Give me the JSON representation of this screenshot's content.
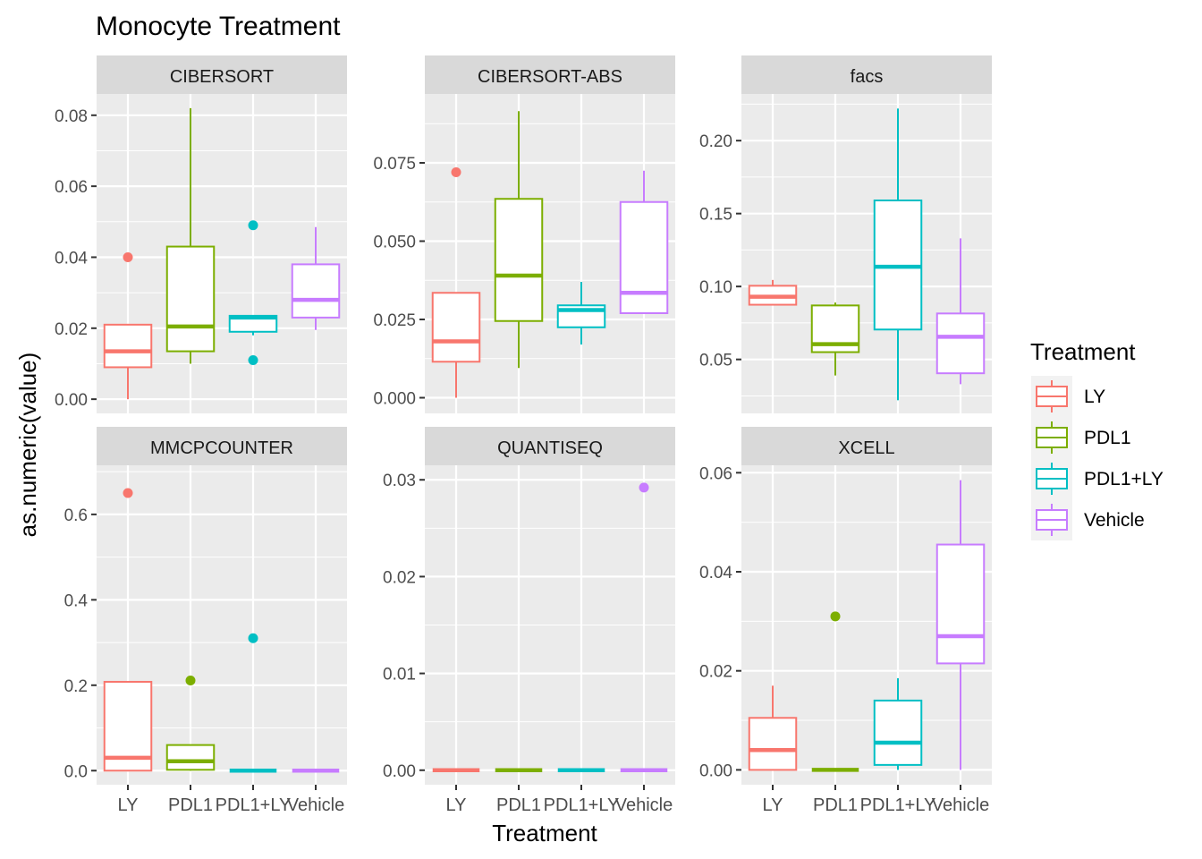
{
  "title": "Monocyte Treatment",
  "chart_data": {
    "type": "boxplot",
    "title": "Monocyte Treatment",
    "xlabel": "Treatment",
    "ylabel": "as.numeric(value)",
    "categories": [
      "LY",
      "PDL1",
      "PDL1+LY",
      "Vehicle"
    ],
    "legend": {
      "title": "Treatment",
      "placement": "right",
      "entries": [
        {
          "name": "LY",
          "color": "#F8766D"
        },
        {
          "name": "PDL1",
          "color": "#7CAE00"
        },
        {
          "name": "PDL1+LY",
          "color": "#00BFC4"
        },
        {
          "name": "Vehicle",
          "color": "#C77CFF"
        }
      ]
    },
    "grid": true,
    "panels": [
      {
        "name": "CIBERSORT",
        "ylim": [
          -0.004,
          0.086
        ],
        "yticks": [
          0.0,
          0.02,
          0.04,
          0.06,
          0.08
        ],
        "ytick_labels": [
          "0.00",
          "0.02",
          "0.04",
          "0.06",
          "0.08"
        ],
        "boxes": [
          {
            "category": "LY",
            "min": 0.0,
            "q1": 0.009,
            "median": 0.0135,
            "q3": 0.021,
            "max": 0.021,
            "outliers": [
              0.04
            ]
          },
          {
            "category": "PDL1",
            "min": 0.01,
            "q1": 0.0135,
            "median": 0.0205,
            "q3": 0.043,
            "max": 0.082,
            "outliers": []
          },
          {
            "category": "PDL1+LY",
            "min": 0.018,
            "q1": 0.019,
            "median": 0.023,
            "q3": 0.0235,
            "max": 0.0235,
            "outliers": [
              0.049,
              0.011
            ]
          },
          {
            "category": "Vehicle",
            "min": 0.0195,
            "q1": 0.023,
            "median": 0.028,
            "q3": 0.038,
            "max": 0.0485,
            "outliers": []
          }
        ]
      },
      {
        "name": "CIBERSORT-ABS",
        "ylim": [
          -0.005,
          0.097
        ],
        "yticks": [
          0.0,
          0.025,
          0.05,
          0.075
        ],
        "ytick_labels": [
          "0.000",
          "0.025",
          "0.050",
          "0.075"
        ],
        "boxes": [
          {
            "category": "LY",
            "min": 0.0,
            "q1": 0.0115,
            "median": 0.018,
            "q3": 0.0335,
            "max": 0.0335,
            "outliers": [
              0.072
            ]
          },
          {
            "category": "PDL1",
            "min": 0.0095,
            "q1": 0.0245,
            "median": 0.039,
            "q3": 0.0635,
            "max": 0.0915,
            "outliers": []
          },
          {
            "category": "PDL1+LY",
            "min": 0.017,
            "q1": 0.0225,
            "median": 0.028,
            "q3": 0.0295,
            "max": 0.037,
            "outliers": []
          },
          {
            "category": "Vehicle",
            "min": 0.027,
            "q1": 0.027,
            "median": 0.0335,
            "q3": 0.0625,
            "max": 0.0725,
            "outliers": []
          }
        ]
      },
      {
        "name": "facs",
        "ylim": [
          0.013,
          0.232
        ],
        "yticks": [
          0.05,
          0.1,
          0.15,
          0.2
        ],
        "ytick_labels": [
          "0.05",
          "0.10",
          "0.15",
          "0.20"
        ],
        "boxes": [
          {
            "category": "LY",
            "min": 0.087,
            "q1": 0.0875,
            "median": 0.093,
            "q3": 0.1005,
            "max": 0.1045,
            "outliers": []
          },
          {
            "category": "PDL1",
            "min": 0.039,
            "q1": 0.055,
            "median": 0.0605,
            "q3": 0.087,
            "max": 0.089,
            "outliers": []
          },
          {
            "category": "PDL1+LY",
            "min": 0.022,
            "q1": 0.0705,
            "median": 0.1135,
            "q3": 0.159,
            "max": 0.222,
            "outliers": []
          },
          {
            "category": "Vehicle",
            "min": 0.033,
            "q1": 0.0405,
            "median": 0.0655,
            "q3": 0.0815,
            "max": 0.133,
            "outliers": []
          }
        ]
      },
      {
        "name": "MMCPCOUNTER",
        "ylim": [
          -0.033,
          0.715
        ],
        "yticks": [
          0.0,
          0.2,
          0.4,
          0.6
        ],
        "ytick_labels": [
          "0.0",
          "0.2",
          "0.4",
          "0.6"
        ],
        "boxes": [
          {
            "category": "LY",
            "min": 0.0,
            "q1": 0.0,
            "median": 0.03,
            "q3": 0.208,
            "max": 0.208,
            "outliers": [
              0.65
            ]
          },
          {
            "category": "PDL1",
            "min": 0.0,
            "q1": 0.002,
            "median": 0.022,
            "q3": 0.06,
            "max": 0.06,
            "outliers": [
              0.211
            ]
          },
          {
            "category": "PDL1+LY",
            "min": 0.0,
            "q1": 0.0,
            "median": 0.0,
            "q3": 0.0,
            "max": 0.0,
            "outliers": [
              0.31
            ]
          },
          {
            "category": "Vehicle",
            "min": 0.0,
            "q1": 0.0,
            "median": 0.0,
            "q3": 0.0,
            "max": 0.0,
            "outliers": []
          }
        ]
      },
      {
        "name": "QUANTISEQ",
        "ylim": [
          -0.0015,
          0.0315
        ],
        "yticks": [
          0.0,
          0.01,
          0.02,
          0.03
        ],
        "ytick_labels": [
          "0.00",
          "0.01",
          "0.02",
          "0.03"
        ],
        "boxes": [
          {
            "category": "LY",
            "min": 0.0,
            "q1": 0.0,
            "median": 0.0,
            "q3": 0.0,
            "max": 0.0,
            "outliers": []
          },
          {
            "category": "PDL1",
            "min": 0.0,
            "q1": 0.0,
            "median": 0.0,
            "q3": 0.0,
            "max": 0.0,
            "outliers": []
          },
          {
            "category": "PDL1+LY",
            "min": 0.0,
            "q1": 0.0,
            "median": 0.0,
            "q3": 0.0,
            "max": 0.0,
            "outliers": []
          },
          {
            "category": "Vehicle",
            "min": 0.0,
            "q1": 0.0,
            "median": 0.0,
            "q3": 0.0,
            "max": 0.0,
            "outliers": [
              0.0292
            ]
          }
        ]
      },
      {
        "name": "XCELL",
        "ylim": [
          -0.003,
          0.0615
        ],
        "yticks": [
          0.0,
          0.02,
          0.04,
          0.06
        ],
        "ytick_labels": [
          "0.00",
          "0.02",
          "0.04",
          "0.06"
        ],
        "boxes": [
          {
            "category": "LY",
            "min": 0.0,
            "q1": 0.0,
            "median": 0.004,
            "q3": 0.0105,
            "max": 0.017,
            "outliers": []
          },
          {
            "category": "PDL1",
            "min": 0.0,
            "q1": 0.0,
            "median": 0.0,
            "q3": 0.0,
            "max": 0.0,
            "outliers": [
              0.031
            ]
          },
          {
            "category": "PDL1+LY",
            "min": 0.0,
            "q1": 0.001,
            "median": 0.0055,
            "q3": 0.014,
            "max": 0.0185,
            "outliers": []
          },
          {
            "category": "Vehicle",
            "min": 0.0,
            "q1": 0.0215,
            "median": 0.027,
            "q3": 0.0455,
            "max": 0.0585,
            "outliers": []
          }
        ]
      }
    ]
  }
}
